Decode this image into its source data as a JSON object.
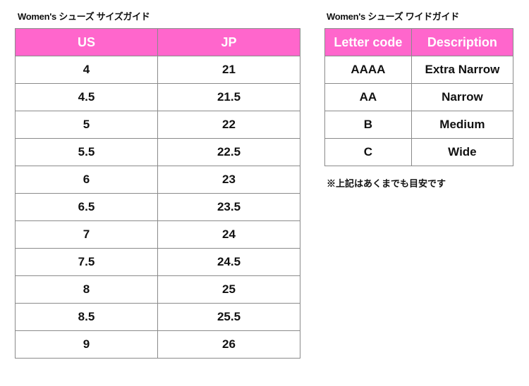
{
  "size_guide": {
    "title": "Women's シューズ サイズガイド",
    "headers": [
      "US",
      "JP"
    ],
    "rows": [
      [
        "4",
        "21"
      ],
      [
        "4.5",
        "21.5"
      ],
      [
        "5",
        "22"
      ],
      [
        "5.5",
        "22.5"
      ],
      [
        "6",
        "23"
      ],
      [
        "6.5",
        "23.5"
      ],
      [
        "7",
        "24"
      ],
      [
        "7.5",
        "24.5"
      ],
      [
        "8",
        "25"
      ],
      [
        "8.5",
        "25.5"
      ],
      [
        "9",
        "26"
      ]
    ]
  },
  "width_guide": {
    "title": "Women's シューズ ワイドガイド",
    "headers": [
      "Letter code",
      "Description"
    ],
    "rows": [
      [
        "AAAA",
        "Extra Narrow"
      ],
      [
        "AA",
        "Narrow"
      ],
      [
        "B",
        "Medium"
      ],
      [
        "C",
        "Wide"
      ]
    ],
    "note": "※上記はあくまでも目安です"
  },
  "colors": {
    "header_bg": "#ff66cc",
    "header_text": "#ffffff",
    "border": "#8a8a8a"
  }
}
